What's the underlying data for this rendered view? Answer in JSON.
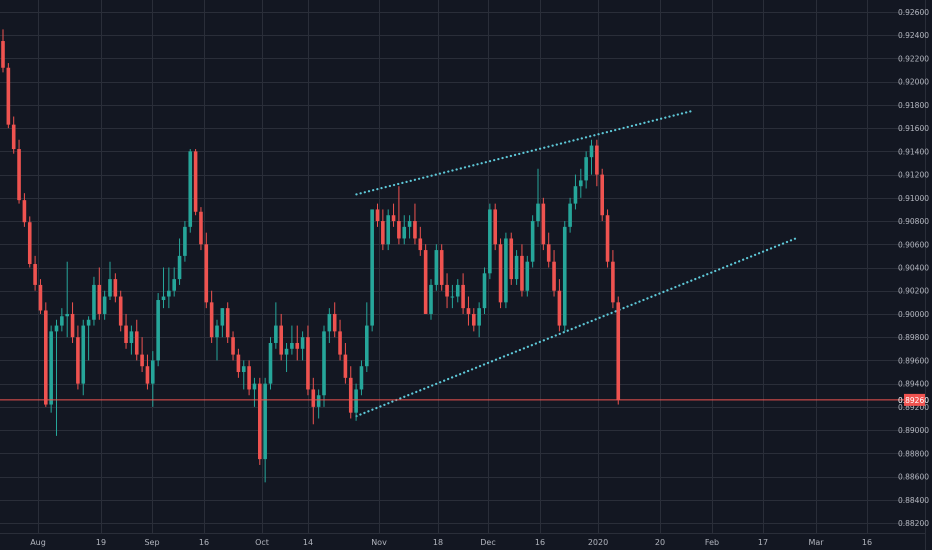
{
  "chart_data": {
    "type": "candlestick",
    "title": "",
    "xlabel": "",
    "ylabel": "",
    "x_ticks": [
      "Aug",
      "19",
      "Sep",
      "16",
      "Oct",
      "14",
      "Nov",
      "18",
      "Dec",
      "16",
      "2020",
      "20",
      "Feb",
      "17",
      "Mar",
      "16"
    ],
    "y_ticks": [
      "0.92600",
      "0.92400",
      "0.92200",
      "0.92000",
      "0.91800",
      "0.91600",
      "0.91400",
      "0.91200",
      "0.91000",
      "0.90800",
      "0.90600",
      "0.90400",
      "0.90200",
      "0.90000",
      "0.89800",
      "0.89600",
      "0.89400",
      "0.89200",
      "0.89000",
      "0.88800",
      "0.88600",
      "0.88400",
      "0.88200"
    ],
    "ylim": [
      0.8818,
      0.9268
    ],
    "last_price": "0.89260",
    "grid": true,
    "colors": {
      "background": "#131722",
      "grid": "#2a2e39",
      "up": "#26a69a",
      "down": "#ef5350",
      "trendline": "#5ec8d8",
      "axis_text": "#b2b5be",
      "price_label_bg": "#ef5350",
      "price_label_text": "#ffffff"
    },
    "candles": [
      [
        0.9235,
        0.9245,
        0.9208,
        0.9212
      ],
      [
        0.9212,
        0.9216,
        0.916,
        0.9163
      ],
      [
        0.9163,
        0.917,
        0.9138,
        0.9142
      ],
      [
        0.9142,
        0.915,
        0.9095,
        0.9098
      ],
      [
        0.9098,
        0.9104,
        0.9075,
        0.9079
      ],
      [
        0.9079,
        0.9084,
        0.904,
        0.9043
      ],
      [
        0.9043,
        0.905,
        0.902,
        0.9025
      ],
      [
        0.9025,
        0.903,
        0.9,
        0.9003
      ],
      [
        0.9003,
        0.901,
        0.892,
        0.8922
      ],
      [
        0.8922,
        0.899,
        0.8915,
        0.8985
      ],
      [
        0.8985,
        0.8995,
        0.8895,
        0.899
      ],
      [
        0.899,
        0.9005,
        0.8985,
        0.8998
      ],
      [
        0.8998,
        0.9045,
        0.898,
        0.9
      ],
      [
        0.9,
        0.901,
        0.8975,
        0.898
      ],
      [
        0.898,
        0.899,
        0.8935,
        0.894
      ],
      [
        0.894,
        0.8995,
        0.893,
        0.899
      ],
      [
        0.899,
        0.8998,
        0.896,
        0.8995
      ],
      [
        0.8995,
        0.9032,
        0.899,
        0.9025
      ],
      [
        0.9025,
        0.904,
        0.8995,
        0.9
      ],
      [
        0.9,
        0.902,
        0.8995,
        0.9015
      ],
      [
        0.9015,
        0.9045,
        0.9012,
        0.903
      ],
      [
        0.903,
        0.9035,
        0.901,
        0.9015
      ],
      [
        0.9015,
        0.902,
        0.8985,
        0.899
      ],
      [
        0.899,
        0.9,
        0.897,
        0.8975
      ],
      [
        0.8975,
        0.899,
        0.8965,
        0.8985
      ],
      [
        0.8985,
        0.8995,
        0.896,
        0.8965
      ],
      [
        0.8965,
        0.898,
        0.895,
        0.8955
      ],
      [
        0.8955,
        0.8965,
        0.8935,
        0.894
      ],
      [
        0.894,
        0.8968,
        0.892,
        0.896
      ],
      [
        0.896,
        0.9018,
        0.8955,
        0.9012
      ],
      [
        0.9012,
        0.904,
        0.9005,
        0.9015
      ],
      [
        0.9015,
        0.904,
        0.9005,
        0.902
      ],
      [
        0.902,
        0.904,
        0.9015,
        0.903
      ],
      [
        0.903,
        0.9065,
        0.9025,
        0.905
      ],
      [
        0.905,
        0.908,
        0.9045,
        0.9075
      ],
      [
        0.9075,
        0.9142,
        0.907,
        0.914
      ],
      [
        0.914,
        0.9142,
        0.9085,
        0.9088
      ],
      [
        0.9088,
        0.9092,
        0.9055,
        0.906
      ],
      [
        0.906,
        0.907,
        0.9005,
        0.901
      ],
      [
        0.901,
        0.902,
        0.8975,
        0.898
      ],
      [
        0.898,
        0.8995,
        0.896,
        0.899
      ],
      [
        0.899,
        0.9005,
        0.898,
        0.9005
      ],
      [
        0.9005,
        0.901,
        0.8975,
        0.898
      ],
      [
        0.898,
        0.8985,
        0.896,
        0.8965
      ],
      [
        0.8965,
        0.897,
        0.8945,
        0.895
      ],
      [
        0.895,
        0.896,
        0.8935,
        0.8955
      ],
      [
        0.8955,
        0.896,
        0.893,
        0.8935
      ],
      [
        0.8935,
        0.8945,
        0.892,
        0.894
      ],
      [
        0.894,
        0.8945,
        0.887,
        0.8875
      ],
      [
        0.8875,
        0.8945,
        0.8855,
        0.894
      ],
      [
        0.894,
        0.898,
        0.8935,
        0.8975
      ],
      [
        0.8975,
        0.901,
        0.897,
        0.899
      ],
      [
        0.899,
        0.9,
        0.896,
        0.8965
      ],
      [
        0.8965,
        0.8975,
        0.895,
        0.897
      ],
      [
        0.897,
        0.899,
        0.8965,
        0.8975
      ],
      [
        0.8975,
        0.899,
        0.896,
        0.897
      ],
      [
        0.897,
        0.8985,
        0.896,
        0.898
      ],
      [
        0.898,
        0.899,
        0.893,
        0.8935
      ],
      [
        0.8935,
        0.8945,
        0.8905,
        0.892
      ],
      [
        0.892,
        0.8935,
        0.891,
        0.893
      ],
      [
        0.893,
        0.899,
        0.892,
        0.8985
      ],
      [
        0.8985,
        0.9005,
        0.8975,
        0.9
      ],
      [
        0.9,
        0.901,
        0.898,
        0.8985
      ],
      [
        0.8985,
        0.8995,
        0.896,
        0.8965
      ],
      [
        0.8965,
        0.8975,
        0.894,
        0.8945
      ],
      [
        0.8945,
        0.8955,
        0.891,
        0.8915
      ],
      [
        0.8915,
        0.894,
        0.8908,
        0.8935
      ],
      [
        0.8935,
        0.896,
        0.893,
        0.8955
      ],
      [
        0.8955,
        0.901,
        0.895,
        0.899
      ],
      [
        0.899,
        0.909,
        0.8985,
        0.909
      ],
      [
        0.909,
        0.9095,
        0.9075,
        0.908
      ],
      [
        0.908,
        0.909,
        0.9055,
        0.906
      ],
      [
        0.906,
        0.909,
        0.9055,
        0.9085
      ],
      [
        0.9085,
        0.9095,
        0.9075,
        0.908
      ],
      [
        0.908,
        0.911,
        0.906,
        0.9065
      ],
      [
        0.9065,
        0.9085,
        0.906,
        0.9075
      ],
      [
        0.9075,
        0.9085,
        0.9065,
        0.908
      ],
      [
        0.908,
        0.9095,
        0.906,
        0.9065
      ],
      [
        0.9065,
        0.9075,
        0.905,
        0.9055
      ],
      [
        0.9055,
        0.906,
        0.9,
        0.9
      ],
      [
        0.9,
        0.903,
        0.8995,
        0.9025
      ],
      [
        0.9025,
        0.906,
        0.902,
        0.9055
      ],
      [
        0.9055,
        0.906,
        0.902,
        0.9025
      ],
      [
        0.9025,
        0.9035,
        0.9005,
        0.9015
      ],
      [
        0.9015,
        0.9025,
        0.9005,
        0.9015
      ],
      [
        0.9015,
        0.903,
        0.901,
        0.9025
      ],
      [
        0.9025,
        0.9035,
        0.9,
        0.9005
      ],
      [
        0.9005,
        0.9015,
        0.899,
        0.9
      ],
      [
        0.9,
        0.9005,
        0.8985,
        0.899
      ],
      [
        0.899,
        0.901,
        0.898,
        0.9005
      ],
      [
        0.9005,
        0.904,
        0.9,
        0.9035
      ],
      [
        0.9035,
        0.9095,
        0.903,
        0.909
      ],
      [
        0.909,
        0.9095,
        0.9055,
        0.906
      ],
      [
        0.906,
        0.9065,
        0.9005,
        0.901
      ],
      [
        0.901,
        0.907,
        0.9005,
        0.9065
      ],
      [
        0.9065,
        0.907,
        0.9025,
        0.903
      ],
      [
        0.903,
        0.9055,
        0.9025,
        0.905
      ],
      [
        0.905,
        0.906,
        0.9015,
        0.902
      ],
      [
        0.902,
        0.905,
        0.9015,
        0.9045
      ],
      [
        0.9045,
        0.9085,
        0.904,
        0.908
      ],
      [
        0.908,
        0.9125,
        0.9075,
        0.9095
      ],
      [
        0.9095,
        0.91,
        0.9055,
        0.906
      ],
      [
        0.906,
        0.907,
        0.904,
        0.9045
      ],
      [
        0.9045,
        0.9055,
        0.9015,
        0.902
      ],
      [
        0.902,
        0.903,
        0.8985,
        0.899
      ],
      [
        0.899,
        0.908,
        0.8985,
        0.9075
      ],
      [
        0.9075,
        0.91,
        0.907,
        0.9095
      ],
      [
        0.9095,
        0.912,
        0.909,
        0.911
      ],
      [
        0.911,
        0.9125,
        0.91,
        0.9115
      ],
      [
        0.9115,
        0.914,
        0.9108,
        0.9135
      ],
      [
        0.9135,
        0.915,
        0.912,
        0.9145
      ],
      [
        0.9145,
        0.915,
        0.911,
        0.912
      ],
      [
        0.912,
        0.9125,
        0.908,
        0.9085
      ],
      [
        0.9085,
        0.909,
        0.904,
        0.9045
      ],
      [
        0.9045,
        0.9055,
        0.9005,
        0.901
      ],
      [
        0.901,
        0.9015,
        0.8922,
        0.8926
      ]
    ],
    "trendlines": [
      {
        "style": "dotted",
        "x": [
          "Oct 27",
          "Jan 27"
        ],
        "y": [
          0.9103,
          0.9175
        ]
      },
      {
        "style": "dotted",
        "x": [
          "Oct 27",
          "Feb 24"
        ],
        "y": [
          0.8912,
          0.9065
        ]
      }
    ]
  }
}
